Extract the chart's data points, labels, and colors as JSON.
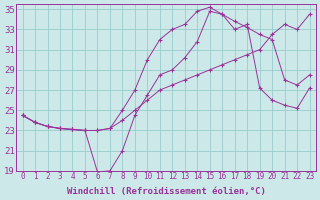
{
  "bg_color": "#cce8e8",
  "grid_color": "#99cccc",
  "line_color": "#993399",
  "xlabel": "Windchill (Refroidissement éolien,°C)",
  "xlim": [
    -0.5,
    23.5
  ],
  "ylim": [
    19,
    35.5
  ],
  "yticks": [
    19,
    21,
    23,
    25,
    27,
    29,
    31,
    33,
    35
  ],
  "xticks": [
    0,
    1,
    2,
    3,
    4,
    5,
    6,
    7,
    8,
    9,
    10,
    11,
    12,
    13,
    14,
    15,
    16,
    17,
    18,
    19,
    20,
    21,
    22,
    23
  ],
  "curve1_x": [
    0,
    1,
    2,
    3,
    4,
    5,
    6,
    7,
    8,
    9,
    10,
    11,
    12,
    13,
    14,
    15,
    16,
    17,
    18,
    19,
    20,
    21,
    22,
    23
  ],
  "curve1_y": [
    24.5,
    23.8,
    23.4,
    23.2,
    23.1,
    23.0,
    18.9,
    19.0,
    21.0,
    24.5,
    26.5,
    28.5,
    29.0,
    30.2,
    31.8,
    34.8,
    34.5,
    33.8,
    33.2,
    32.5,
    32.0,
    28.0,
    27.5,
    28.5
  ],
  "curve2_x": [
    0,
    1,
    2,
    3,
    4,
    5,
    6,
    7,
    8,
    9,
    10,
    11,
    12,
    13,
    14,
    15,
    16,
    17,
    18,
    19,
    20,
    21,
    22,
    23
  ],
  "curve2_y": [
    24.5,
    23.8,
    23.4,
    23.2,
    23.1,
    23.0,
    23.0,
    23.2,
    24.0,
    25.0,
    26.0,
    27.0,
    27.5,
    28.0,
    28.5,
    29.0,
    29.5,
    30.0,
    30.5,
    31.0,
    32.5,
    33.5,
    33.0,
    34.5
  ],
  "curve3_x": [
    0,
    1,
    2,
    3,
    4,
    5,
    6,
    7,
    8,
    9,
    10,
    11,
    12,
    13,
    14,
    15,
    16,
    17,
    18,
    19,
    20,
    21,
    22,
    23
  ],
  "curve3_y": [
    24.5,
    23.8,
    23.4,
    23.2,
    23.1,
    23.0,
    23.0,
    23.2,
    25.0,
    27.0,
    30.0,
    32.0,
    33.0,
    33.5,
    34.8,
    35.2,
    34.5,
    33.0,
    33.5,
    27.2,
    26.0,
    25.5,
    25.2,
    27.2
  ],
  "font_name": "monospace",
  "fontsize_xlabel": 6.5,
  "fontsize_ytick": 6.5,
  "fontsize_xtick": 5.5
}
